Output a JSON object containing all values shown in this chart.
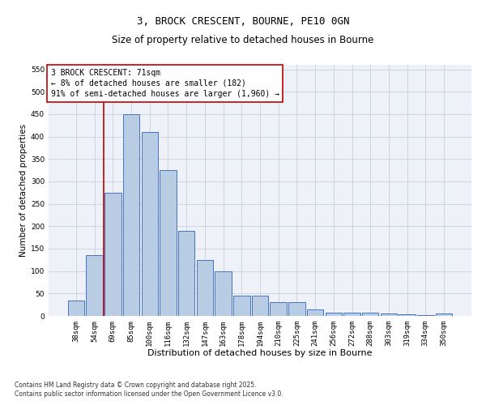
{
  "title": "3, BROCK CRESCENT, BOURNE, PE10 0GN",
  "subtitle": "Size of property relative to detached houses in Bourne",
  "xlabel": "Distribution of detached houses by size in Bourne",
  "ylabel": "Number of detached properties",
  "footer_line1": "Contains HM Land Registry data © Crown copyright and database right 2025.",
  "footer_line2": "Contains public sector information licensed under the Open Government Licence v3.0.",
  "categories": [
    "38sqm",
    "54sqm",
    "69sqm",
    "85sqm",
    "100sqm",
    "116sqm",
    "132sqm",
    "147sqm",
    "163sqm",
    "178sqm",
    "194sqm",
    "210sqm",
    "225sqm",
    "241sqm",
    "256sqm",
    "272sqm",
    "288sqm",
    "303sqm",
    "319sqm",
    "334sqm",
    "350sqm"
  ],
  "values": [
    35,
    135,
    275,
    450,
    410,
    325,
    190,
    125,
    100,
    45,
    45,
    30,
    30,
    15,
    8,
    8,
    8,
    5,
    3,
    2,
    5
  ],
  "bar_color": "#b8cce4",
  "bar_edge_color": "#4472c4",
  "bar_edge_width": 0.7,
  "vline_x": 1.5,
  "vline_color": "#c00000",
  "annotation_text": "3 BROCK CRESCENT: 71sqm\n← 8% of detached houses are smaller (182)\n91% of semi-detached houses are larger (1,960) →",
  "annotation_box_color": "#c00000",
  "annotation_text_size": 7,
  "ylim": [
    0,
    560
  ],
  "yticks": [
    0,
    50,
    100,
    150,
    200,
    250,
    300,
    350,
    400,
    450,
    500,
    550
  ],
  "grid_color": "#c8d0dc",
  "bg_color": "#eef2f8",
  "title_fontsize": 9,
  "subtitle_fontsize": 8.5,
  "xlabel_fontsize": 8,
  "ylabel_fontsize": 7.5,
  "tick_fontsize": 6.5,
  "footer_fontsize": 5.5
}
